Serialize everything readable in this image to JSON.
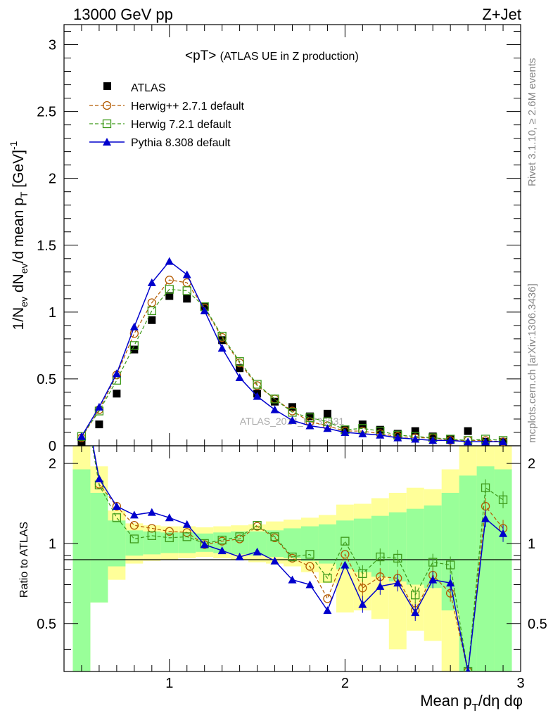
{
  "header": {
    "left": "13000 GeV pp",
    "right": "Z+Jet"
  },
  "side_text": {
    "rivet": "Rivet 3.1.10, ≥ 2.6M events",
    "source": "mcplots.cern.ch [arXiv:1306.3436]"
  },
  "watermark": "ATLAS_2014_I1736531",
  "main_plot": {
    "title_main": "<pT>",
    "title_sub": "(ATLAS UE in Z production)",
    "ylabel": "1/N_ev dN_ev/d mean p_T [GeV]^-1",
    "ylim": [
      0,
      3.15
    ],
    "yticks": [
      "0",
      "0.5",
      "1",
      "1.5",
      "2",
      "2.5",
      "3"
    ]
  },
  "ratio_plot": {
    "ylabel": "Ratio to ATLAS",
    "yticks": [
      "0.5",
      "1",
      "2"
    ],
    "ylim": [
      0.33,
      2.33
    ]
  },
  "xaxis": {
    "label": "Mean p_T/dη dφ",
    "xlim": [
      0.4,
      3.0
    ],
    "ticks": [
      "1",
      "2",
      "3"
    ]
  },
  "legend": {
    "atlas": "ATLAS",
    "herwig_pp": "Herwig++ 2.7.1 default",
    "herwig7": "Herwig 7.2.1 default",
    "pythia": "Pythia 8.308 default"
  },
  "colors": {
    "atlas": "#000000",
    "herwig_pp": "#b35a00",
    "herwig7": "#3d9a1a",
    "pythia": "#0000cc",
    "band_inner": "#99ff99",
    "band_outer": "#ffff99"
  },
  "chart_data": {
    "type": "line",
    "x": [
      0.5,
      0.6,
      0.7,
      0.8,
      0.9,
      1.0,
      1.1,
      1.2,
      1.3,
      1.4,
      1.5,
      1.6,
      1.7,
      1.8,
      1.9,
      2.0,
      2.1,
      2.2,
      2.3,
      2.4,
      2.5,
      2.6,
      2.7,
      2.8,
      2.9
    ],
    "series": [
      {
        "name": "ATLAS",
        "values": [
          0.015,
          0.16,
          0.39,
          0.72,
          0.94,
          1.12,
          1.1,
          1.04,
          0.79,
          0.58,
          0.39,
          0.33,
          0.29,
          0.22,
          0.24,
          0.12,
          0.16,
          0.12,
          0.09,
          0.11,
          0.07,
          0.05,
          0.11,
          0.03,
          0.03
        ]
      },
      {
        "name": "Herwig++ 2.7.1 default",
        "values": [
          0.06,
          0.27,
          0.53,
          0.84,
          1.07,
          1.24,
          1.22,
          1.03,
          0.81,
          0.62,
          0.45,
          0.35,
          0.26,
          0.18,
          0.15,
          0.11,
          0.11,
          0.09,
          0.07,
          0.06,
          0.06,
          0.04,
          0.04,
          0.04,
          0.03
        ]
      },
      {
        "name": "Herwig 7.2.1 default",
        "values": [
          0.07,
          0.26,
          0.49,
          0.75,
          1.01,
          1.17,
          1.16,
          1.04,
          0.82,
          0.63,
          0.46,
          0.35,
          0.25,
          0.21,
          0.18,
          0.12,
          0.13,
          0.11,
          0.08,
          0.07,
          0.06,
          0.05,
          0.04,
          0.05,
          0.04
        ]
      },
      {
        "name": "Pythia 8.308 default",
        "values": [
          0.07,
          0.29,
          0.54,
          0.89,
          1.22,
          1.38,
          1.28,
          1.01,
          0.73,
          0.51,
          0.37,
          0.27,
          0.19,
          0.15,
          0.13,
          0.1,
          0.09,
          0.08,
          0.06,
          0.05,
          0.04,
          0.04,
          0.03,
          0.03,
          0.03
        ]
      }
    ],
    "ratio": {
      "x": [
        0.5,
        0.6,
        0.7,
        0.8,
        0.9,
        1.0,
        1.1,
        1.2,
        1.3,
        1.4,
        1.5,
        1.6,
        1.7,
        1.8,
        1.9,
        2.0,
        2.1,
        2.2,
        2.3,
        2.4,
        2.5,
        2.6,
        2.7,
        2.8,
        2.9
      ],
      "series": [
        {
          "name": "Herwig++ 2.7.1 default",
          "values": [
            4.0,
            1.67,
            1.38,
            1.17,
            1.14,
            1.11,
            1.1,
            0.99,
            1.02,
            1.04,
            1.16,
            1.05,
            0.88,
            0.82,
            0.62,
            0.91,
            0.68,
            0.75,
            0.74,
            0.56,
            0.76,
            0.65,
            0.33,
            1.38,
            1.14
          ]
        },
        {
          "name": "Herwig 7.2.1 default",
          "values": [
            4.0,
            1.66,
            1.25,
            1.04,
            1.07,
            1.05,
            1.06,
            1.0,
            1.03,
            1.06,
            1.17,
            1.06,
            0.89,
            0.91,
            0.74,
            1.02,
            0.77,
            0.89,
            0.88,
            0.64,
            0.85,
            0.83,
            0.33,
            1.62,
            1.46
          ]
        },
        {
          "name": "Pythia 8.308 default",
          "values": [
            4.0,
            1.75,
            1.38,
            1.28,
            1.31,
            1.25,
            1.18,
            0.99,
            0.94,
            0.89,
            0.93,
            0.86,
            0.73,
            0.7,
            0.56,
            0.83,
            0.59,
            0.69,
            0.71,
            0.55,
            0.73,
            0.71,
            0.33,
            1.24,
            1.09
          ]
        }
      ],
      "band_inner": {
        "lo": [
          0.3,
          0.6,
          0.82,
          0.9,
          0.91,
          0.92,
          0.92,
          0.93,
          0.92,
          0.91,
          0.9,
          0.89,
          0.88,
          0.86,
          0.84,
          0.8,
          0.78,
          0.75,
          0.72,
          0.7,
          0.68,
          0.56,
          0.3,
          0.3,
          0.3
        ],
        "hi": [
          1.9,
          1.55,
          1.22,
          1.12,
          1.11,
          1.1,
          1.1,
          1.09,
          1.1,
          1.11,
          1.11,
          1.12,
          1.14,
          1.16,
          1.18,
          1.22,
          1.24,
          1.27,
          1.31,
          1.35,
          1.39,
          1.55,
          1.8,
          1.95,
          1.9
        ]
      },
      "band_outer": {
        "lo": [
          0.3,
          0.6,
          0.73,
          0.84,
          0.86,
          0.87,
          0.88,
          0.89,
          0.88,
          0.87,
          0.85,
          0.84,
          0.82,
          0.78,
          0.71,
          0.55,
          0.56,
          0.52,
          0.4,
          0.47,
          0.43,
          0.3,
          0.3,
          0.3,
          0.3
        ]
      },
      "band_outer_hi": [
        2.5,
        1.95,
        1.33,
        1.19,
        1.17,
        1.16,
        1.16,
        1.15,
        1.16,
        1.17,
        1.18,
        1.21,
        1.23,
        1.25,
        1.28,
        1.4,
        1.41,
        1.48,
        1.55,
        1.62,
        1.6,
        1.9,
        2.5,
        2.5,
        2.5
      ]
    }
  }
}
